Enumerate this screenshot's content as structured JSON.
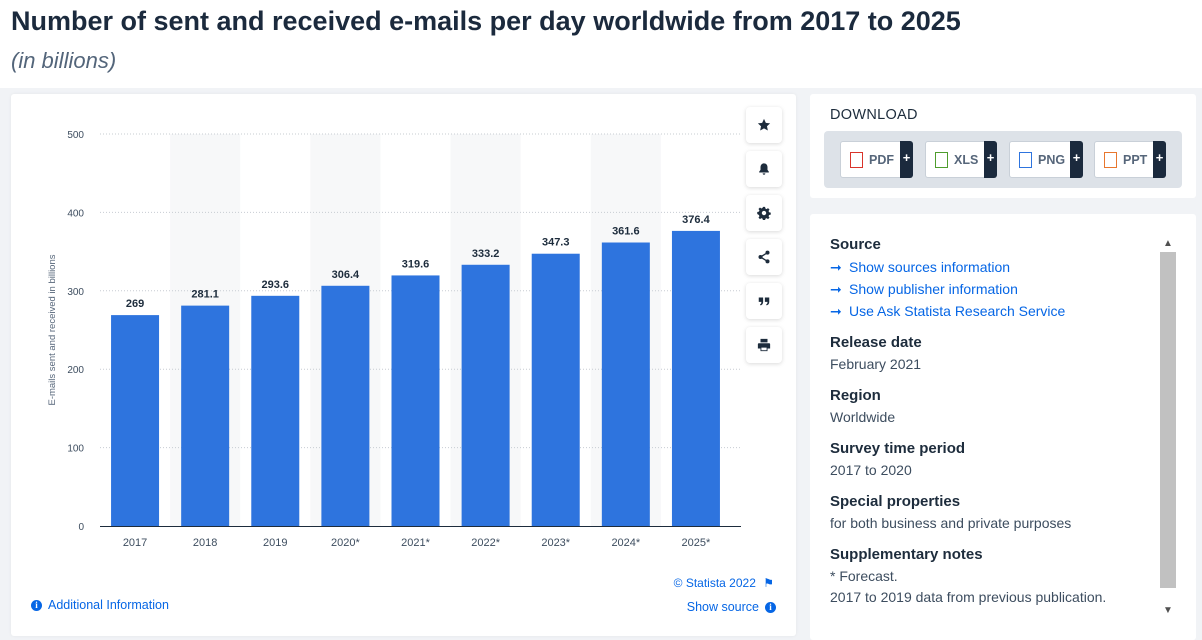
{
  "header": {
    "title": "Number of sent and received e-mails per day worldwide from 2017 to 2025",
    "subtitle": "(in billions)"
  },
  "chart_data": {
    "type": "bar",
    "categories": [
      "2017",
      "2018",
      "2019",
      "2020*",
      "2021*",
      "2022*",
      "2023*",
      "2024*",
      "2025*"
    ],
    "values": [
      269,
      281.1,
      293.6,
      306.4,
      319.6,
      333.2,
      347.3,
      361.6,
      376.4
    ],
    "value_labels": [
      "269",
      "281.1",
      "293.6",
      "306.4",
      "319.6",
      "333.2",
      "347.3",
      "361.6",
      "376.4"
    ],
    "ylabel": "E-mails sent and received in billions",
    "xlabel": "",
    "ylim": [
      0,
      500
    ],
    "yticks": [
      "0",
      "100",
      "200",
      "300",
      "400",
      "500"
    ],
    "grid": true,
    "bar_color": "#2e74de"
  },
  "chart_footer": {
    "copyright": "© Statista 2022",
    "additional_info": "Additional Information",
    "show_source": "Show source"
  },
  "toolbar": {
    "icons": [
      "star-icon",
      "bell-icon",
      "gear-icon",
      "share-icon",
      "quote-icon",
      "print-icon"
    ]
  },
  "download": {
    "title": "DOWNLOAD",
    "buttons": [
      {
        "label": "PDF",
        "plus": "+",
        "icon": "pdf-file-icon",
        "color": "#d9342b"
      },
      {
        "label": "XLS",
        "plus": "+",
        "icon": "xls-file-icon",
        "color": "#4f9d2d"
      },
      {
        "label": "PNG",
        "plus": "+",
        "icon": "png-file-icon",
        "color": "#2e74de"
      },
      {
        "label": "PPT",
        "plus": "+",
        "icon": "ppt-file-icon",
        "color": "#e8772e"
      }
    ]
  },
  "info": {
    "source_title": "Source",
    "source_links": [
      "Show sources information",
      "Show publisher information",
      "Use Ask Statista Research Service"
    ],
    "release_title": "Release date",
    "release_value": "February 2021",
    "region_title": "Region",
    "region_value": "Worldwide",
    "period_title": "Survey time period",
    "period_value": "2017 to 2020",
    "special_title": "Special properties",
    "special_value": "for both business and private purposes",
    "notes_title": "Supplementary notes",
    "notes_lines": [
      "* Forecast.",
      "2017 to 2019 data from previous publication."
    ]
  }
}
